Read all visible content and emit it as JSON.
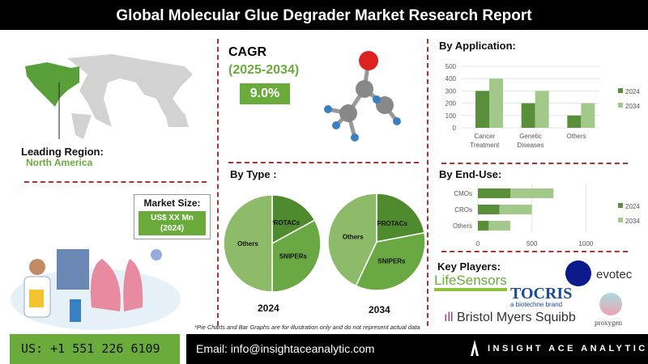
{
  "header": {
    "title": "Global Molecular Glue Degrader Market Research Report"
  },
  "region": {
    "label": "Leading Region:",
    "value": "North America"
  },
  "market_size": {
    "label": "Market Size:",
    "value": "US$ XX Mn",
    "year": "(2024)"
  },
  "cagr": {
    "label": "CAGR",
    "period": "(2025-2034)",
    "value": "9.0%"
  },
  "by_type": {
    "label": "By Type :"
  },
  "by_application": {
    "label": "By Application:"
  },
  "by_end_use": {
    "label": "By End-Use:"
  },
  "key_players": {
    "label": "Key Players:",
    "players": [
      "LifeSensors",
      "evotec",
      "TOCRIS",
      "a biotechne brand",
      "Bristol Myers Squibb",
      "proxygen"
    ]
  },
  "disclaimer": "*Pie Charts and Bar Graphs are for illustration only and do not represent actual data",
  "footer": {
    "phone": "US: +1 551 226 6109",
    "email": "Email: info@insightaceanalytic.com",
    "brand": "INSIGHT ACE ANALYTIC"
  },
  "colors": {
    "dark": "#5a8f3a",
    "light": "#a3c98a",
    "pie_dark": "#4f8a2e",
    "pie_mid": "#6aa843",
    "pie_light": "#8dbb6a",
    "accent": "#6aab3c"
  },
  "chart_data": [
    {
      "type": "pie",
      "title": "2024",
      "labels": [
        "PROTACs",
        "SNIPERs",
        "Others"
      ],
      "values": [
        17,
        33,
        50
      ]
    },
    {
      "type": "pie",
      "title": "2034",
      "labels": [
        "PROTACs",
        "SNIPERs",
        "Others"
      ],
      "values": [
        22,
        35,
        43
      ]
    },
    {
      "type": "bar",
      "title": "By Application:",
      "categories": [
        "Cancer Treatment",
        "Genetic Diseases",
        "Others"
      ],
      "series": [
        {
          "name": "2024",
          "values": [
            300,
            200,
            100
          ]
        },
        {
          "name": "2034",
          "values": [
            400,
            300,
            200
          ]
        }
      ],
      "ylim": [
        0,
        500
      ],
      "yticks": [
        0,
        100,
        200,
        300,
        400,
        500
      ],
      "legend": "right"
    },
    {
      "type": "bar",
      "orientation": "horizontal",
      "stacked": true,
      "title": "By End-Use:",
      "categories": [
        "CMOs",
        "CROs",
        "Others"
      ],
      "series": [
        {
          "name": "2024",
          "values": [
            300,
            200,
            100
          ]
        },
        {
          "name": "2034",
          "values": [
            400,
            300,
            200
          ]
        }
      ],
      "xlim": [
        0,
        1200
      ],
      "xticks": [
        0,
        500,
        1000
      ],
      "legend": "right"
    }
  ]
}
